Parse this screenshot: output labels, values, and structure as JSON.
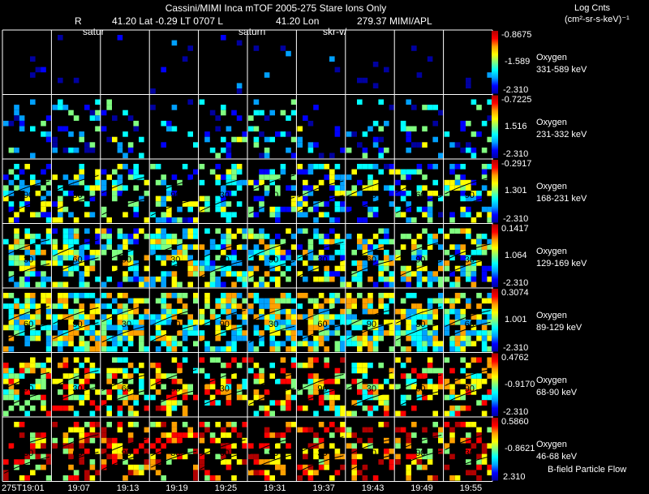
{
  "header": {
    "title": "Cassini/MIMI Inca mTOF  2005-275   Stare   Ions Only",
    "r_label": "R",
    "lat_text": "41.20 Lat -0.29 LT 0707 L",
    "lon_text": "41.20 Lon",
    "lon_value": "279.37  MIMI/APL",
    "markers": [
      "satur",
      "saturn",
      "skr-v/"
    ],
    "log_title": "Log Cnts",
    "log_units": "(cm²-sr-s-keV)⁻¹"
  },
  "footer": {
    "flow_label": "B-field Particle Flow"
  },
  "chart_data": {
    "type": "heatmap",
    "title": "Cassini/MIMI Inca mTOF  2005-275   Stare   Ions Only",
    "time_labels": [
      "275T19:01",
      "19:07",
      "19:13",
      "19:19",
      "19:25",
      "19:31",
      "19:37",
      "19:43",
      "19:49",
      "19:55"
    ],
    "species": "Oxygen",
    "rows": [
      {
        "name": "Oxygen",
        "energy": "331-589 keV",
        "cmax": "-0.8675",
        "cmid": "-1.589",
        "cmin": "-2.310",
        "density": 0.04,
        "level": 0.05,
        "contours": false
      },
      {
        "name": "Oxygen",
        "energy": "231-332 keV",
        "cmax": "-0.7225",
        "cmid": "1.516",
        "cmin": "-2.310",
        "density": 0.25,
        "level": 0.3,
        "contours": false
      },
      {
        "name": "Oxygen",
        "energy": "168-231 keV",
        "cmax": "-0.2917",
        "cmid": "1.301",
        "cmin": "-2.310",
        "density": 0.55,
        "level": 0.38,
        "contours": true
      },
      {
        "name": "Oxygen",
        "energy": "129-169 keV",
        "cmax": "0.1417",
        "cmid": "1.064",
        "cmin": "-2.310",
        "density": 0.72,
        "level": 0.45,
        "contours": true
      },
      {
        "name": "Oxygen",
        "energy": "89-129 keV",
        "cmax": "0.3074",
        "cmid": "1.001",
        "cmin": "-2.310",
        "density": 0.85,
        "level": 0.5,
        "contours": true
      },
      {
        "name": "Oxygen",
        "energy": "68-90 keV",
        "cmax": "0.4762",
        "cmid": "-0.9170",
        "cmin": "-2.310",
        "density": 0.6,
        "level": 0.62,
        "contours": true
      },
      {
        "name": "Oxygen",
        "energy": "46-68 keV",
        "cmax": "0.5860",
        "cmid": "-0.8621",
        "cmin": "2.310",
        "density": 0.5,
        "level": 0.75,
        "contours": true
      }
    ],
    "contour_labels": [
      "30",
      "60",
      "90"
    ],
    "colormap": [
      "#0000a0",
      "#0000ff",
      "#00a0ff",
      "#00ffff",
      "#80ff80",
      "#ffff00",
      "#ffa000",
      "#ff0000",
      "#b00000"
    ]
  }
}
